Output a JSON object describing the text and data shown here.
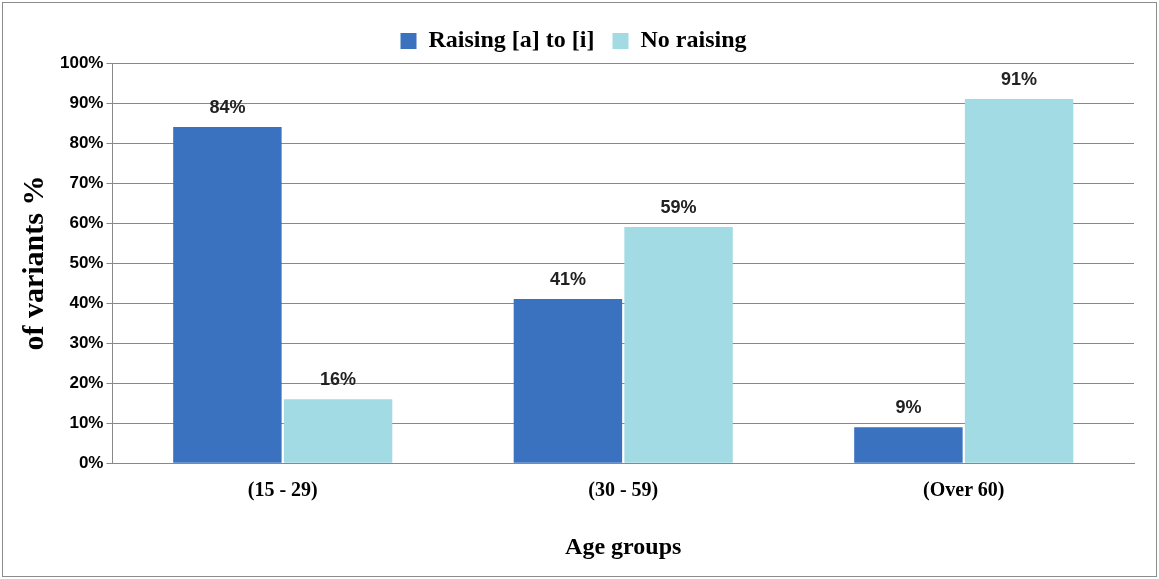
{
  "chart_data": {
    "type": "bar",
    "xlabel": "Age groups",
    "ylabel": "of variants %",
    "categories": [
      "(15 - 29)",
      "(30 - 59)",
      "(Over 60)"
    ],
    "series": [
      {
        "name": "Raising [a] to [i]",
        "color": "#3a72c0",
        "values": [
          84,
          41,
          9
        ],
        "value_labels": [
          "84%",
          "41%",
          "9%"
        ]
      },
      {
        "name": "No raising",
        "color": "#a3dbe5",
        "values": [
          16,
          59,
          91
        ],
        "value_labels": [
          "16%",
          "59%",
          "91%"
        ]
      }
    ],
    "ylim": [
      0,
      100
    ],
    "yticks": [
      {
        "value": 0,
        "label": "0%"
      },
      {
        "value": 10,
        "label": "10%"
      },
      {
        "value": 20,
        "label": "20%"
      },
      {
        "value": 30,
        "label": "30%"
      },
      {
        "value": 40,
        "label": "40%"
      },
      {
        "value": 50,
        "label": "50%"
      },
      {
        "value": 60,
        "label": "60%"
      },
      {
        "value": 70,
        "label": "70%"
      },
      {
        "value": 80,
        "label": "80%"
      },
      {
        "value": 90,
        "label": "90%"
      },
      {
        "value": 100,
        "label": "100%"
      }
    ],
    "grid": "y",
    "legend": "top"
  }
}
